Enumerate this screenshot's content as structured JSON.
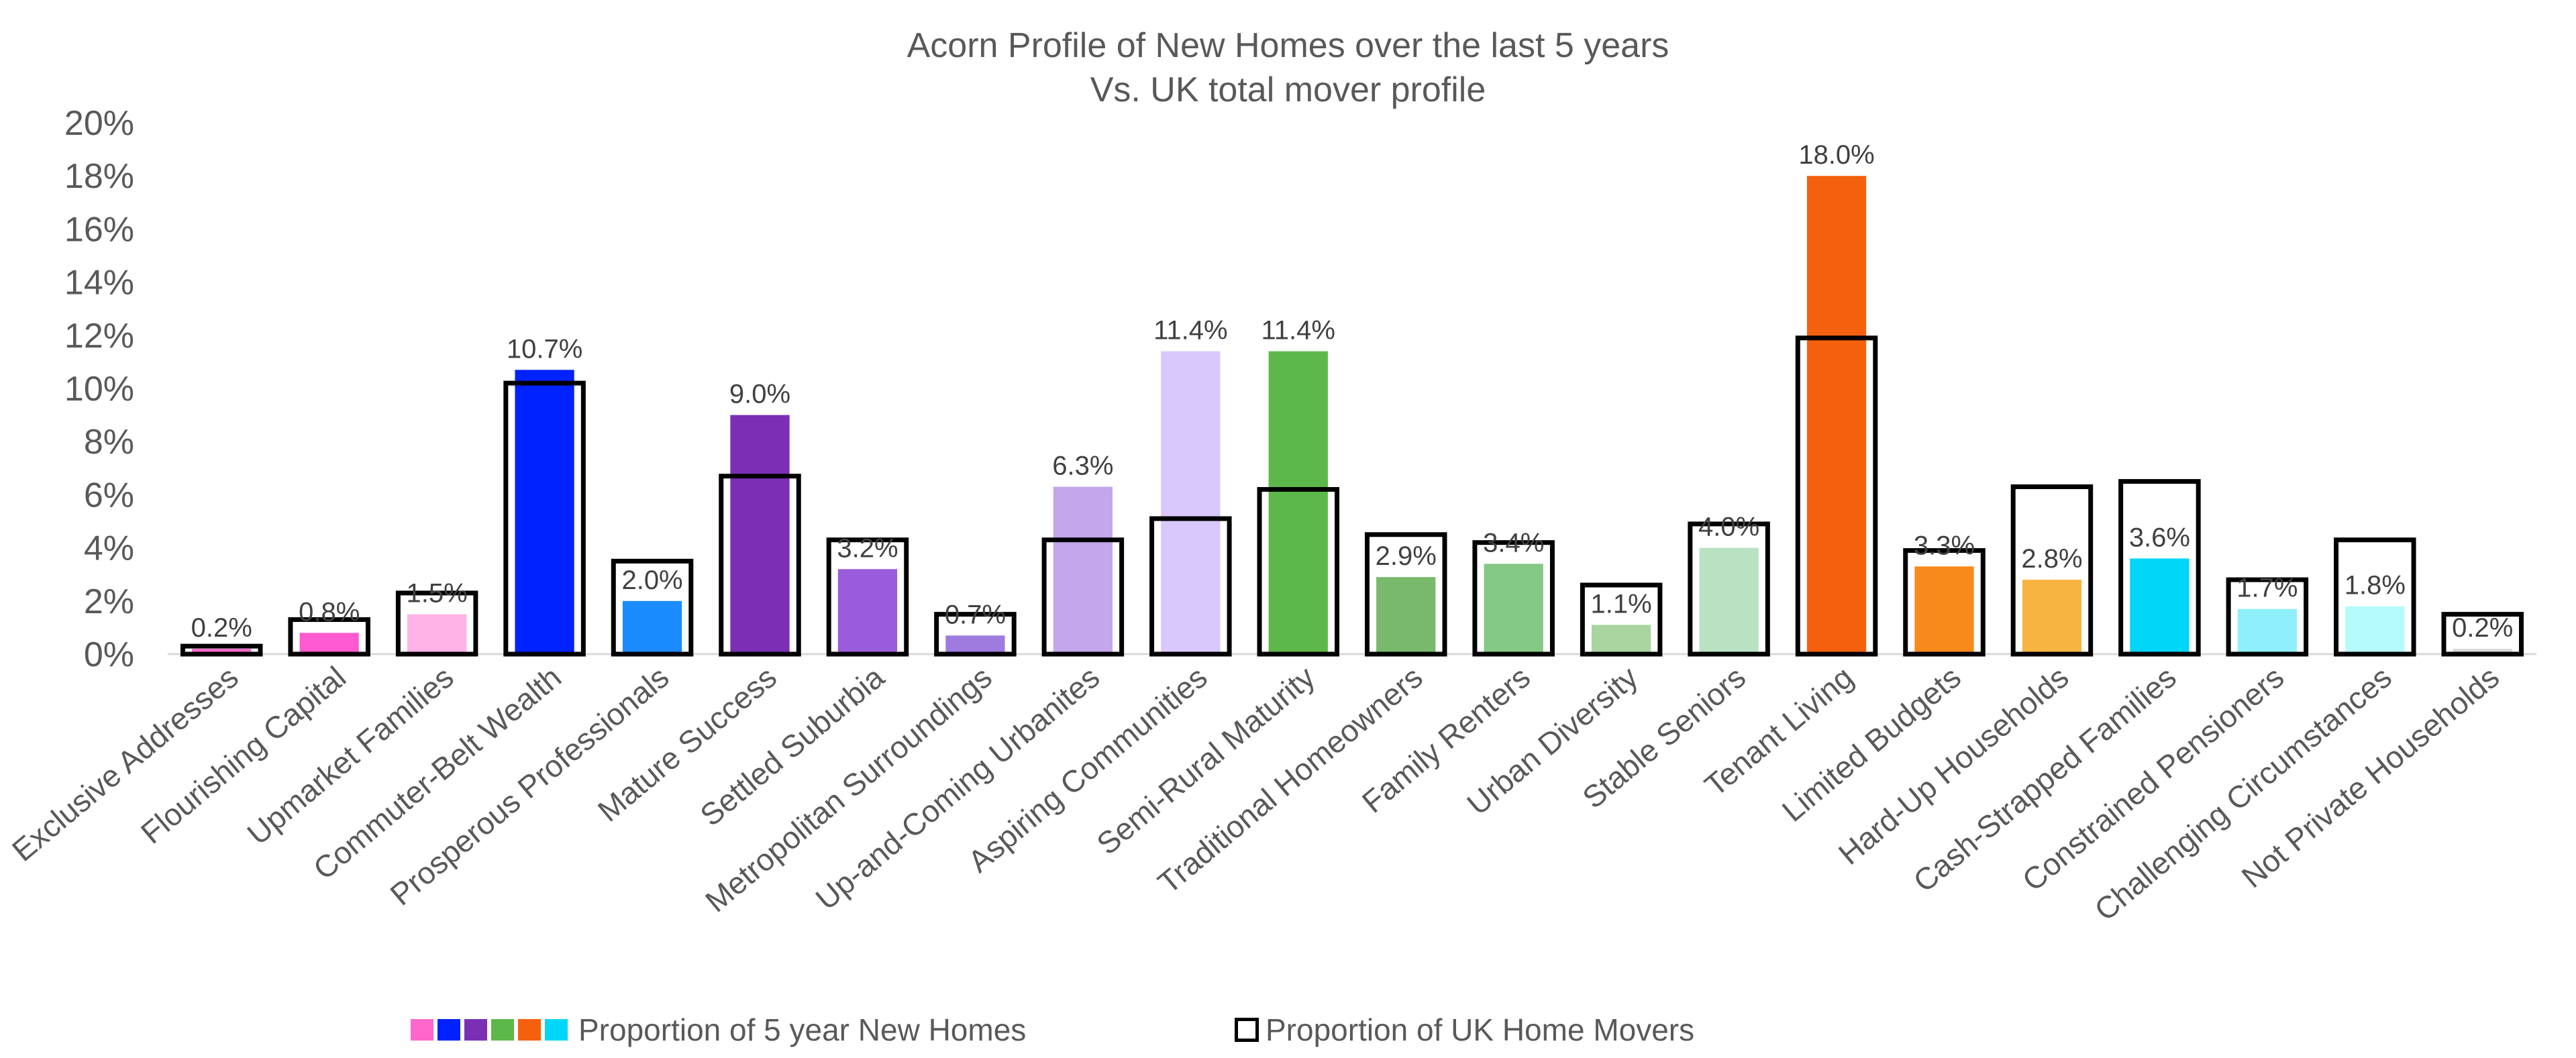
{
  "chart_data": {
    "type": "bar",
    "title": "Acorn Profile of New Homes over the last 5 years",
    "subtitle": "Vs. UK total mover profile",
    "ylim": [
      0,
      20
    ],
    "yticks": [
      "0%",
      "2%",
      "4%",
      "6%",
      "8%",
      "10%",
      "12%",
      "14%",
      "16%",
      "18%",
      "20%"
    ],
    "categories": [
      "Exclusive Addresses",
      "Flourishing Capital",
      "Upmarket Families",
      "Commuter-Belt Wealth",
      "Prosperous Professionals",
      "Mature Success",
      "Settled Suburbia",
      "Metropolitan Surroundings",
      "Up-and-Coming Urbanites",
      "Aspiring Communities",
      "Semi-Rural Maturity",
      "Traditional Homeowners",
      "Family Renters",
      "Urban Diversity",
      "Stable Seniors",
      "Tenant Living",
      "Limited Budgets",
      "Hard-Up Households",
      "Cash-Strapped Families",
      "Constrained Pensioners",
      "Challenging Circumstances",
      "Not Private Households"
    ],
    "series": [
      {
        "name": "Proportion of 5 year New Homes",
        "style": "filled",
        "values": [
          0.2,
          0.8,
          1.5,
          10.7,
          2.0,
          9.0,
          3.2,
          0.7,
          6.3,
          11.4,
          11.4,
          2.9,
          3.4,
          1.1,
          4.0,
          18.0,
          3.3,
          2.8,
          3.6,
          1.7,
          1.8,
          0.2
        ],
        "labels": [
          "0.2%",
          "0.8%",
          "1.5%",
          "10.7%",
          "2.0%",
          "9.0%",
          "3.2%",
          "0.7%",
          "6.3%",
          "11.4%",
          "11.4%",
          "2.9%",
          "3.4%",
          "1.1%",
          "4.0%",
          "18.0%",
          "3.3%",
          "2.8%",
          "3.6%",
          "1.7%",
          "1.8%",
          "0.2%"
        ],
        "colors": [
          "#ff66cc",
          "#ff5ad1",
          "#ffb3e6",
          "#0022ff",
          "#1a8cff",
          "#7b2fb5",
          "#9a5cdc",
          "#9f7be0",
          "#c4a6ec",
          "#d9c8fb",
          "#5cb84a",
          "#79b96b",
          "#84c984",
          "#a8d5a0",
          "#b9e2c3",
          "#f5600e",
          "#f88a1b",
          "#f8b441",
          "#00d6f7",
          "#8ff0fb",
          "#b6fbfb",
          "#d9d9d9"
        ]
      },
      {
        "name": "Proportion of UK Home Movers",
        "style": "outline",
        "values": [
          0.3,
          1.3,
          2.3,
          10.2,
          3.5,
          6.7,
          4.3,
          1.5,
          4.3,
          5.1,
          6.2,
          4.5,
          4.2,
          2.6,
          4.9,
          11.9,
          3.9,
          6.3,
          6.5,
          2.8,
          4.3,
          1.5
        ]
      }
    ],
    "legend_swatch_colors": [
      "#ff66cc",
      "#0022ff",
      "#7b2fb5",
      "#5cb84a",
      "#f5600e",
      "#00d6f7"
    ],
    "grid": false,
    "legend_position": "bottom"
  }
}
